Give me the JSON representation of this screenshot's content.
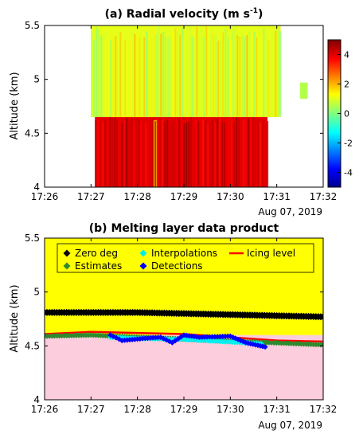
{
  "chart_data": [
    {
      "type": "heatmap",
      "title": "(a) Radial velocity (m s",
      "title_sup": "-1",
      "title_close": ")",
      "ylabel": "Altitude (km)",
      "date_label": "Aug 07, 2019",
      "xlim": [
        "17:26",
        "17:32"
      ],
      "ylim": [
        4,
        5.5
      ],
      "x_ticks": [
        "17:26",
        "17:27",
        "17:28",
        "17:29",
        "17:30",
        "17:31",
        "17:32"
      ],
      "y_ticks": [
        "4",
        "4.5",
        "5",
        "5.5"
      ],
      "colorbar": {
        "range": [
          -5,
          5
        ],
        "ticks": [
          "4",
          "2",
          "0",
          "-2",
          "-4"
        ],
        "colormap": "jet"
      },
      "regions": [
        {
          "x_start": "17:27:05",
          "x_end": "17:30:48",
          "y_range": [
            4.0,
            4.65
          ],
          "velocity": 4.0
        },
        {
          "x_start": "17:27:00",
          "x_end": "17:31:05",
          "y_range": [
            4.65,
            5.5
          ],
          "velocity": 1.0
        },
        {
          "x_start": "17:28:20",
          "x_end": "17:28:25",
          "y_range": [
            4.0,
            4.62
          ],
          "velocity": 2.0
        },
        {
          "x_start": "17:31:30",
          "x_end": "17:31:40",
          "y_range": [
            4.82,
            4.97
          ],
          "velocity": 0.5
        }
      ]
    },
    {
      "type": "scatter",
      "title": "(b) Melting layer data product",
      "ylabel": "Altitude (km)",
      "date_label": "Aug 07, 2019",
      "xlim": [
        "17:26",
        "17:32"
      ],
      "ylim": [
        4,
        5.5
      ],
      "x_ticks": [
        "17:26",
        "17:27",
        "17:28",
        "17:29",
        "17:30",
        "17:31",
        "17:32"
      ],
      "y_ticks": [
        "4",
        "4.5",
        "5",
        "5.5"
      ],
      "background": {
        "upper_color": "#ffff00",
        "lower_color": "#fccddc"
      },
      "legend": [
        {
          "label": "Zero deg",
          "color": "#000000",
          "marker": "diamond"
        },
        {
          "label": "Interpolations",
          "color": "#00eeee",
          "marker": "diamond"
        },
        {
          "label": "Icing level",
          "color": "#ff0000",
          "marker": "line"
        },
        {
          "label": "Estimates",
          "color": "#2e8b2e",
          "marker": "diamond"
        },
        {
          "label": "Detections",
          "color": "#0000ff",
          "marker": "diamond"
        }
      ],
      "series": [
        {
          "name": "Zero deg",
          "x": [
            "17:26",
            "17:27",
            "17:28",
            "17:29",
            "17:30",
            "17:31",
            "17:32"
          ],
          "y": [
            4.81,
            4.81,
            4.81,
            4.8,
            4.79,
            4.78,
            4.77
          ]
        },
        {
          "name": "Icing level",
          "x": [
            "17:26",
            "17:27",
            "17:28",
            "17:29",
            "17:30",
            "17:31",
            "17:32"
          ],
          "y": [
            4.61,
            4.63,
            4.62,
            4.61,
            4.58,
            4.55,
            4.54
          ]
        },
        {
          "name": "Estimates",
          "x": [
            "17:26",
            "17:27",
            "17:30:50",
            "17:32"
          ],
          "y": [
            4.59,
            4.6,
            4.53,
            4.51
          ]
        },
        {
          "name": "Interpolations",
          "x": [
            "17:27:25",
            "17:28",
            "17:29",
            "17:30:40"
          ],
          "y": [
            4.58,
            4.57,
            4.56,
            4.52
          ]
        },
        {
          "name": "Detections",
          "x": [
            "17:27:25",
            "17:27:40",
            "17:28:10",
            "17:28:30",
            "17:28:45",
            "17:29:00",
            "17:29:20",
            "17:30:00",
            "17:30:20",
            "17:30:45"
          ],
          "y": [
            4.6,
            4.55,
            4.57,
            4.58,
            4.53,
            4.6,
            4.58,
            4.59,
            4.53,
            4.49
          ]
        }
      ]
    }
  ]
}
